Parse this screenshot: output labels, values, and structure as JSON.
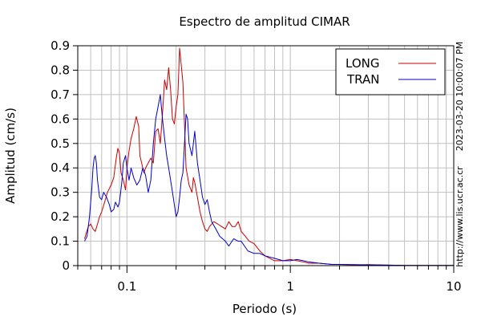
{
  "chart_data": {
    "type": "line",
    "title": "Espectro de amplitud CIMAR",
    "xlabel": "Periodo (s)",
    "ylabel": "Amplitud (cm/s)",
    "xscale": "log",
    "xlim": [
      0.05,
      10
    ],
    "ylim": [
      0,
      0.9
    ],
    "xticks": [
      {
        "v": 0.1,
        "label": "0.1"
      },
      {
        "v": 1,
        "label": "1"
      },
      {
        "v": 10,
        "label": "10"
      }
    ],
    "yticks": [
      0,
      0.1,
      0.2,
      0.3,
      0.4,
      0.5,
      0.6,
      0.7,
      0.8,
      0.9
    ],
    "ytick_labels": [
      "0",
      "0.1",
      "0.2",
      "0.3",
      "0.4",
      "0.5",
      "0.6",
      "0.7",
      "0.8",
      "0.9"
    ],
    "grid": true,
    "legend_position": "top-right",
    "series": [
      {
        "name": "LONG",
        "color": "#cc0000",
        "x": [
          0.055,
          0.058,
          0.06,
          0.062,
          0.064,
          0.066,
          0.068,
          0.07,
          0.073,
          0.076,
          0.08,
          0.083,
          0.086,
          0.088,
          0.09,
          0.092,
          0.095,
          0.098,
          0.1,
          0.103,
          0.106,
          0.11,
          0.114,
          0.118,
          0.12,
          0.123,
          0.127,
          0.13,
          0.135,
          0.14,
          0.145,
          0.15,
          0.155,
          0.16,
          0.165,
          0.17,
          0.175,
          0.18,
          0.185,
          0.19,
          0.195,
          0.2,
          0.205,
          0.21,
          0.215,
          0.22,
          0.225,
          0.23,
          0.24,
          0.25,
          0.255,
          0.26,
          0.27,
          0.28,
          0.29,
          0.3,
          0.31,
          0.32,
          0.34,
          0.36,
          0.38,
          0.4,
          0.42,
          0.44,
          0.46,
          0.48,
          0.5,
          0.53,
          0.56,
          0.6,
          0.65,
          0.7,
          0.8,
          0.9,
          1.0,
          1.1,
          1.2,
          1.3,
          1.5,
          1.8,
          2.0,
          2.5,
          3.0,
          4.0,
          5.0,
          7.0,
          10.0
        ],
        "y": [
          0.11,
          0.16,
          0.17,
          0.15,
          0.14,
          0.17,
          0.2,
          0.22,
          0.26,
          0.3,
          0.33,
          0.36,
          0.44,
          0.48,
          0.46,
          0.38,
          0.35,
          0.31,
          0.4,
          0.47,
          0.52,
          0.56,
          0.61,
          0.57,
          0.45,
          0.42,
          0.38,
          0.4,
          0.42,
          0.44,
          0.42,
          0.55,
          0.56,
          0.5,
          0.62,
          0.76,
          0.72,
          0.81,
          0.72,
          0.6,
          0.58,
          0.65,
          0.7,
          0.89,
          0.82,
          0.75,
          0.58,
          0.4,
          0.33,
          0.3,
          0.36,
          0.34,
          0.28,
          0.22,
          0.18,
          0.15,
          0.14,
          0.16,
          0.18,
          0.17,
          0.16,
          0.15,
          0.18,
          0.16,
          0.16,
          0.18,
          0.14,
          0.12,
          0.1,
          0.09,
          0.06,
          0.04,
          0.02,
          0.02,
          0.025,
          0.02,
          0.015,
          0.01,
          0.01,
          0.005,
          0.005,
          0.003,
          0.004,
          0.002,
          0.001,
          0.001,
          0.001
        ]
      },
      {
        "name": "TRAN",
        "color": "#0000cc",
        "x": [
          0.055,
          0.057,
          0.059,
          0.061,
          0.062,
          0.063,
          0.064,
          0.065,
          0.066,
          0.068,
          0.07,
          0.072,
          0.075,
          0.078,
          0.08,
          0.083,
          0.085,
          0.088,
          0.09,
          0.093,
          0.095,
          0.098,
          0.1,
          0.103,
          0.106,
          0.11,
          0.115,
          0.12,
          0.125,
          0.13,
          0.135,
          0.14,
          0.145,
          0.15,
          0.155,
          0.16,
          0.165,
          0.17,
          0.175,
          0.18,
          0.185,
          0.19,
          0.195,
          0.2,
          0.205,
          0.21,
          0.215,
          0.22,
          0.225,
          0.23,
          0.235,
          0.24,
          0.25,
          0.26,
          0.27,
          0.28,
          0.29,
          0.3,
          0.31,
          0.32,
          0.33,
          0.35,
          0.37,
          0.4,
          0.42,
          0.45,
          0.48,
          0.5,
          0.55,
          0.6,
          0.65,
          0.7,
          0.8,
          0.9,
          1.0,
          1.1,
          1.2,
          1.3,
          1.5,
          1.8,
          2.0,
          2.5,
          3.0,
          4.0,
          5.0,
          7.0,
          10.0
        ],
        "y": [
          0.1,
          0.12,
          0.2,
          0.32,
          0.4,
          0.44,
          0.45,
          0.42,
          0.35,
          0.28,
          0.27,
          0.3,
          0.28,
          0.25,
          0.22,
          0.23,
          0.26,
          0.24,
          0.26,
          0.34,
          0.42,
          0.45,
          0.4,
          0.35,
          0.4,
          0.36,
          0.33,
          0.35,
          0.4,
          0.37,
          0.3,
          0.35,
          0.5,
          0.6,
          0.65,
          0.7,
          0.6,
          0.52,
          0.45,
          0.4,
          0.35,
          0.3,
          0.25,
          0.2,
          0.22,
          0.28,
          0.35,
          0.38,
          0.5,
          0.62,
          0.6,
          0.5,
          0.45,
          0.55,
          0.42,
          0.35,
          0.28,
          0.25,
          0.27,
          0.22,
          0.18,
          0.15,
          0.12,
          0.1,
          0.08,
          0.11,
          0.1,
          0.1,
          0.06,
          0.05,
          0.05,
          0.04,
          0.03,
          0.02,
          0.02,
          0.025,
          0.02,
          0.015,
          0.01,
          0.005,
          0.005,
          0.004,
          0.003,
          0.002,
          0.001,
          0.001,
          0.001
        ]
      }
    ]
  },
  "side_text": {
    "timestamp": "2023-03-20 10:00:07 PM",
    "url": "http://www.lis.ucr.ac.cr"
  }
}
